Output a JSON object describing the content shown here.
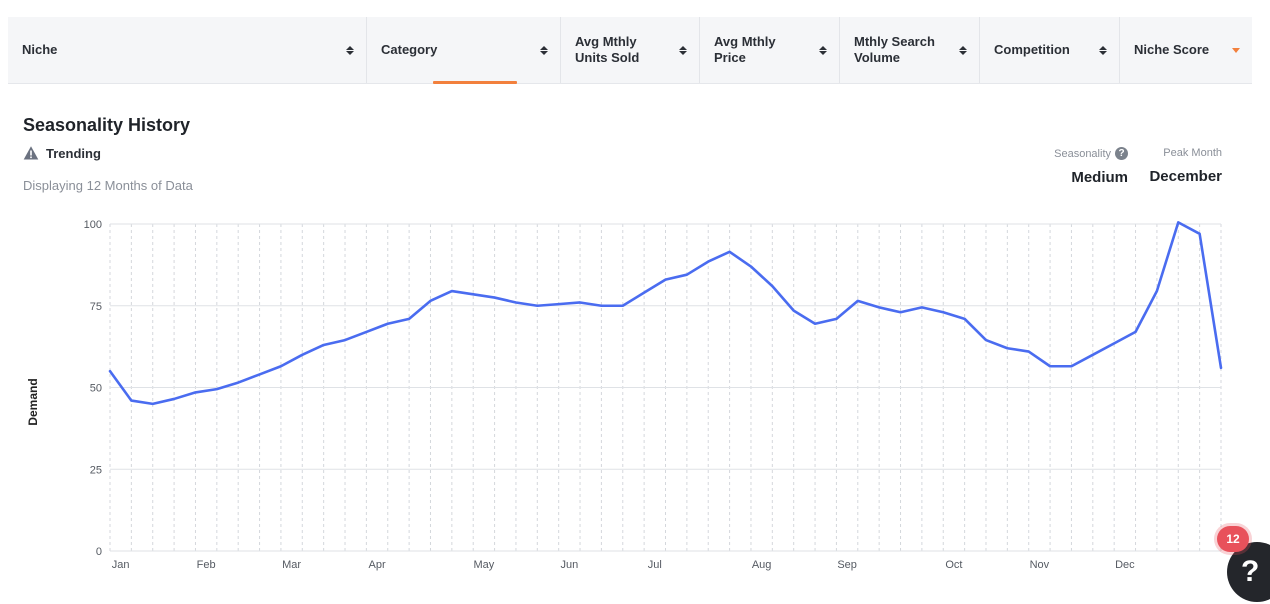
{
  "table_header": {
    "columns": [
      {
        "label": "Niche",
        "sort": "both"
      },
      {
        "label": "Category",
        "sort": "both"
      },
      {
        "label": "Avg Mthly\nUnits Sold",
        "sort": "both"
      },
      {
        "label": "Avg Mthly\nPrice",
        "sort": "both"
      },
      {
        "label": "Mthly Search\nVolume",
        "sort": "both"
      },
      {
        "label": "Competition",
        "sort": "both"
      },
      {
        "label": "Niche Score",
        "sort": "desc"
      }
    ]
  },
  "seasonality": {
    "title": "Seasonality History",
    "trend_icon": "warning-triangle-icon",
    "trend_label": "Trending",
    "subtitle": "Displaying 12 Months of Data",
    "seasonality_label": "Seasonality",
    "seasonality_value": "Medium",
    "peak_month_label": "Peak Month",
    "peak_month_value": "December"
  },
  "colors": {
    "line": "#4a6cf0",
    "accent": "#f2803d",
    "badge": "#e8515b"
  },
  "chart_data": {
    "type": "line",
    "ylabel": "Demand",
    "xlabel": "",
    "ylim": [
      0,
      100
    ],
    "yticks": [
      0,
      25,
      50,
      75,
      100
    ],
    "grid": "horizontal solid, vertical dashed",
    "month_ticks": [
      {
        "label": "Jan",
        "week": 0.5
      },
      {
        "label": "Feb",
        "week": 4.5
      },
      {
        "label": "Mar",
        "week": 8.5
      },
      {
        "label": "Apr",
        "week": 12.5
      },
      {
        "label": "May",
        "week": 17.5
      },
      {
        "label": "Jun",
        "week": 21.5
      },
      {
        "label": "Jul",
        "week": 25.5
      },
      {
        "label": "Aug",
        "week": 30.5
      },
      {
        "label": "Sep",
        "week": 34.5
      },
      {
        "label": "Oct",
        "week": 39.5
      },
      {
        "label": "Nov",
        "week": 43.5
      },
      {
        "label": "Dec",
        "week": 47.5
      }
    ],
    "series": [
      {
        "values": [
          55,
          46,
          45,
          46.5,
          48.5,
          49.5,
          51.5,
          54,
          56.5,
          60,
          63,
          64.5,
          67,
          69.5,
          71,
          76.5,
          79.5,
          78.5,
          77.5,
          76,
          75,
          75.5,
          76,
          75,
          75,
          79,
          83,
          84.5,
          88.5,
          91.5,
          87,
          81,
          73.5,
          69.5,
          71,
          76.5,
          74.5,
          73,
          74.5,
          73,
          71,
          64.5,
          62,
          61,
          56.5,
          56.5,
          60,
          63.5,
          67,
          79.5,
          100.5,
          97,
          56
        ]
      }
    ]
  },
  "widgets": {
    "notification_count": "12",
    "help_label": "?"
  }
}
